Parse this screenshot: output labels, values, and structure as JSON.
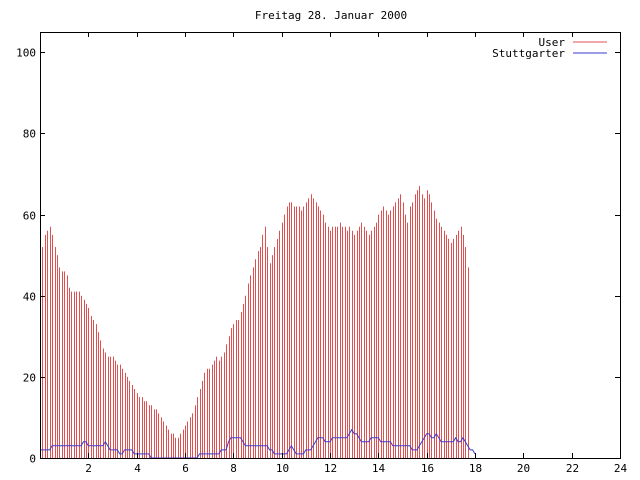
{
  "chart_data": {
    "type": "bar",
    "title": "Freitag 28. Januar 2000",
    "xlabel": "",
    "ylabel": "",
    "xlim": [
      0,
      24
    ],
    "ylim": [
      0,
      105
    ],
    "x_ticks": [
      "2",
      "4",
      "6",
      "8",
      "10",
      "12",
      "14",
      "16",
      "18",
      "20",
      "22",
      "24"
    ],
    "y_ticks": [
      "0",
      "20",
      "40",
      "60",
      "80",
      "100"
    ],
    "grid": false,
    "legend_position": "top-right",
    "sample_interval_hours": 0.1,
    "series": [
      {
        "name": "User",
        "style": "impulses",
        "color": "#e05050",
        "values": [
          51,
          52,
          55,
          56,
          57,
          55,
          52,
          50,
          47,
          46,
          46,
          45,
          42,
          41,
          41,
          41,
          41,
          40,
          39,
          38,
          37,
          35,
          34,
          33,
          31,
          29,
          27,
          26,
          25,
          25,
          25,
          24,
          23,
          23,
          22,
          21,
          20,
          19,
          18,
          17,
          16,
          15,
          15,
          14,
          14,
          13,
          13,
          12,
          12,
          11,
          10,
          9,
          8,
          7,
          6,
          6,
          5,
          5,
          6,
          7,
          8,
          9,
          10,
          11,
          13,
          15,
          17,
          19,
          21,
          22,
          22,
          23,
          24,
          25,
          24,
          25,
          26,
          28,
          30,
          32,
          33,
          34,
          34,
          36,
          38,
          40,
          43,
          45,
          47,
          49,
          51,
          52,
          55,
          57,
          52,
          48,
          50,
          52,
          54,
          56,
          58,
          60,
          62,
          63,
          63,
          62,
          62,
          62,
          61,
          62,
          63,
          64,
          65,
          64,
          63,
          62,
          61,
          60,
          58,
          57,
          56,
          57,
          57,
          57,
          58,
          57,
          57,
          56,
          57,
          56,
          55,
          56,
          57,
          58,
          57,
          56,
          55,
          56,
          57,
          58,
          60,
          61,
          62,
          61,
          60,
          61,
          62,
          63,
          64,
          65,
          63,
          60,
          58,
          62,
          63,
          65,
          66,
          67,
          65,
          64,
          66,
          65,
          63,
          61,
          59,
          58,
          57,
          56,
          55,
          54,
          53,
          54,
          55,
          56,
          57,
          55,
          52,
          47
        ]
      },
      {
        "name": "Stuttgarter",
        "style": "lines",
        "color": "#3a3ad0",
        "values": [
          2,
          2,
          2,
          2,
          2,
          3,
          3,
          3,
          3,
          3,
          3,
          3,
          3,
          3,
          3,
          3,
          3,
          3,
          4,
          4,
          3,
          3,
          3,
          3,
          3,
          3,
          3,
          4,
          3,
          2,
          2,
          2,
          2,
          1,
          1,
          2,
          2,
          2,
          2,
          1,
          1,
          1,
          1,
          1,
          1,
          1,
          0,
          0,
          0,
          0,
          0,
          0,
          0,
          0,
          0,
          0,
          0,
          0,
          0,
          0,
          0,
          0,
          0,
          0,
          0,
          0,
          1,
          1,
          1,
          1,
          1,
          1,
          1,
          1,
          1,
          2,
          2,
          2,
          4,
          5,
          5,
          5,
          5,
          5,
          4,
          3,
          3,
          3,
          3,
          3,
          3,
          3,
          3,
          3,
          3,
          2,
          2,
          1,
          1,
          1,
          1,
          1,
          1,
          2,
          3,
          2,
          1,
          1,
          1,
          1,
          2,
          2,
          2,
          3,
          4,
          5,
          5,
          5,
          4,
          4,
          4,
          5,
          5,
          5,
          5,
          5,
          5,
          5,
          6,
          7,
          6,
          6,
          5,
          4,
          4,
          4,
          4,
          5,
          5,
          5,
          5,
          4,
          4,
          4,
          4,
          4,
          3,
          3,
          3,
          3,
          3,
          3,
          3,
          3,
          2,
          2,
          2,
          3,
          4,
          5,
          6,
          6,
          5,
          5,
          6,
          5,
          4,
          4,
          4,
          4,
          4,
          4,
          5,
          4,
          4,
          5,
          4,
          3,
          2,
          2,
          1
        ]
      }
    ]
  }
}
